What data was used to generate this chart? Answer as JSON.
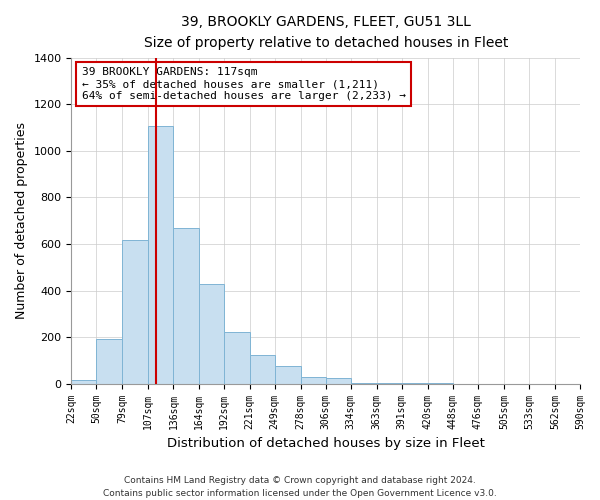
{
  "title": "39, BROOKLY GARDENS, FLEET, GU51 3LL",
  "subtitle": "Size of property relative to detached houses in Fleet",
  "xlabel": "Distribution of detached houses by size in Fleet",
  "ylabel": "Number of detached properties",
  "bin_edges": [
    22,
    50,
    79,
    107,
    136,
    164,
    192,
    221,
    249,
    278,
    306,
    334,
    363,
    391,
    420,
    448,
    476,
    505,
    533,
    562,
    590
  ],
  "counts": [
    15,
    190,
    615,
    1105,
    670,
    430,
    220,
    125,
    75,
    30,
    25,
    5,
    5,
    2,
    2,
    0,
    0,
    0,
    0,
    0
  ],
  "tick_labels": [
    "22sqm",
    "50sqm",
    "79sqm",
    "107sqm",
    "136sqm",
    "164sqm",
    "192sqm",
    "221sqm",
    "249sqm",
    "278sqm",
    "306sqm",
    "334sqm",
    "363sqm",
    "391sqm",
    "420sqm",
    "448sqm",
    "476sqm",
    "505sqm",
    "533sqm",
    "562sqm",
    "590sqm"
  ],
  "property_size": 117,
  "bar_color": "#c8dff0",
  "bar_edge_color": "#7fb4d4",
  "vline_color": "#cc0000",
  "annotation_line1": "39 BROOKLY GARDENS: 117sqm",
  "annotation_line2": "← 35% of detached houses are smaller (1,211)",
  "annotation_line3": "64% of semi-detached houses are larger (2,233) →",
  "annotation_box_color": "#ffffff",
  "annotation_box_edge": "#cc0000",
  "ylim": [
    0,
    1400
  ],
  "yticks": [
    0,
    200,
    400,
    600,
    800,
    1000,
    1200,
    1400
  ],
  "footer1": "Contains HM Land Registry data © Crown copyright and database right 2024.",
  "footer2": "Contains public sector information licensed under the Open Government Licence v3.0."
}
